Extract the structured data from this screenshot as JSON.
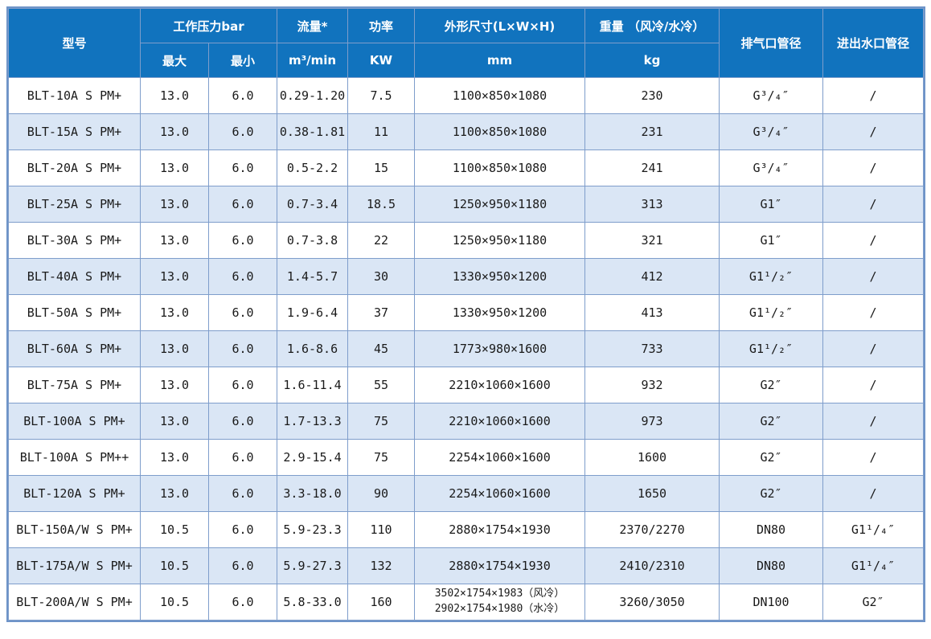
{
  "colors": {
    "header_bg": "#1173BE",
    "header_text": "#FFFFFF",
    "stripe_bg": "#DAE6F5",
    "row_bg": "#FFFFFF",
    "grid_line": "#7E9DCB",
    "outer_border": "#6E94C8",
    "cell_text": "#1A1A1A"
  },
  "table": {
    "header": {
      "model": "型号",
      "pressure_group": "工作压力bar",
      "pressure_max": "最大",
      "pressure_min": "最小",
      "flow_label": "流量*",
      "flow_unit": "m³/min",
      "power_label": "功率",
      "power_unit": "KW",
      "dims_label": "外形尺寸(L×W×H)",
      "dims_unit": "mm",
      "weight_label": "重量 （风冷/水冷）",
      "weight_unit": "kg",
      "outlet_label": "排气口管径",
      "water_label": "进出水口管径"
    },
    "rows": [
      {
        "model": "BLT-10A S PM+",
        "max": "13.0",
        "min": "6.0",
        "flow": "0.29-1.20",
        "power": "7.5",
        "dims": "1100×850×1080",
        "weight": "230",
        "outlet": "G³/₄″",
        "water": "/"
      },
      {
        "model": "BLT-15A S PM+",
        "max": "13.0",
        "min": "6.0",
        "flow": "0.38-1.81",
        "power": "11",
        "dims": "1100×850×1080",
        "weight": "231",
        "outlet": "G³/₄″",
        "water": "/"
      },
      {
        "model": "BLT-20A S PM+",
        "max": "13.0",
        "min": "6.0",
        "flow": "0.5-2.2",
        "power": "15",
        "dims": "1100×850×1080",
        "weight": "241",
        "outlet": "G³/₄″",
        "water": "/"
      },
      {
        "model": "BLT-25A S PM+",
        "max": "13.0",
        "min": "6.0",
        "flow": "0.7-3.4",
        "power": "18.5",
        "dims": "1250×950×1180",
        "weight": "313",
        "outlet": "G1″",
        "water": "/"
      },
      {
        "model": "BLT-30A S PM+",
        "max": "13.0",
        "min": "6.0",
        "flow": "0.7-3.8",
        "power": "22",
        "dims": "1250×950×1180",
        "weight": "321",
        "outlet": "G1″",
        "water": "/"
      },
      {
        "model": "BLT-40A S PM+",
        "max": "13.0",
        "min": "6.0",
        "flow": "1.4-5.7",
        "power": "30",
        "dims": "1330×950×1200",
        "weight": "412",
        "outlet": "G1¹/₂″",
        "water": "/"
      },
      {
        "model": "BLT-50A S PM+",
        "max": "13.0",
        "min": "6.0",
        "flow": "1.9-6.4",
        "power": "37",
        "dims": "1330×950×1200",
        "weight": "413",
        "outlet": "G1¹/₂″",
        "water": "/"
      },
      {
        "model": "BLT-60A S PM+",
        "max": "13.0",
        "min": "6.0",
        "flow": "1.6-8.6",
        "power": "45",
        "dims": "1773×980×1600",
        "weight": "733",
        "outlet": "G1¹/₂″",
        "water": "/"
      },
      {
        "model": "BLT-75A S PM+",
        "max": "13.0",
        "min": "6.0",
        "flow": "1.6-11.4",
        "power": "55",
        "dims": "2210×1060×1600",
        "weight": "932",
        "outlet": "G2″",
        "water": "/"
      },
      {
        "model": "BLT-100A S PM+",
        "max": "13.0",
        "min": "6.0",
        "flow": "1.7-13.3",
        "power": "75",
        "dims": "2210×1060×1600",
        "weight": "973",
        "outlet": "G2″",
        "water": "/"
      },
      {
        "model": "BLT-100A S PM++",
        "max": "13.0",
        "min": "6.0",
        "flow": "2.9-15.4",
        "power": "75",
        "dims": "2254×1060×1600",
        "weight": "1600",
        "outlet": "G2″",
        "water": "/"
      },
      {
        "model": "BLT-120A S PM+",
        "max": "13.0",
        "min": "6.0",
        "flow": "3.3-18.0",
        "power": "90",
        "dims": "2254×1060×1600",
        "weight": "1650",
        "outlet": "G2″",
        "water": "/"
      },
      {
        "model": "BLT-150A/W S PM+",
        "max": "10.5",
        "min": "6.0",
        "flow": "5.9-23.3",
        "power": "110",
        "dims": "2880×1754×1930",
        "weight": "2370/2270",
        "outlet": "DN80",
        "water": "G1¹/₄″"
      },
      {
        "model": "BLT-175A/W S PM+",
        "max": "10.5",
        "min": "6.0",
        "flow": "5.9-27.3",
        "power": "132",
        "dims": "2880×1754×1930",
        "weight": "2410/2310",
        "outlet": "DN80",
        "water": "G1¹/₄″"
      },
      {
        "model": "BLT-200A/W S PM+",
        "max": "10.5",
        "min": "6.0",
        "flow": "5.8-33.0",
        "power": "160",
        "dims": "3502×1754×1983（风冷）\n2902×1754×1980（水冷）",
        "weight": "3260/3050",
        "outlet": "DN100",
        "water": "G2″"
      }
    ]
  }
}
